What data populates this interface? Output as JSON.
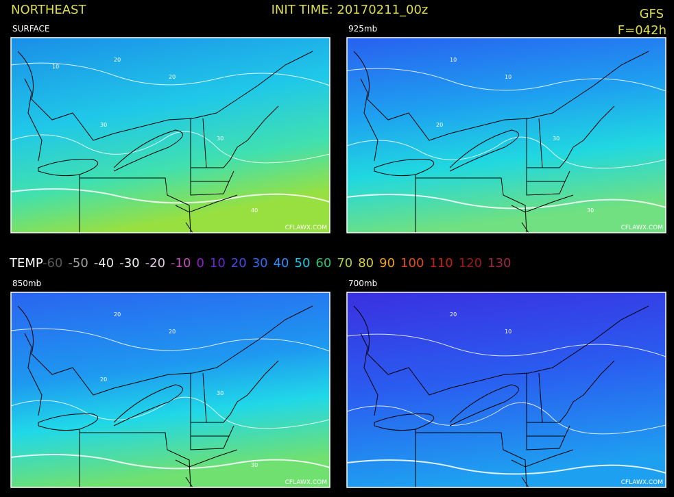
{
  "header": {
    "region": "NORTHEAST",
    "init_time": "INIT TIME: 20170211_00z",
    "model": "GFS",
    "forecast_hour": "F=042h"
  },
  "legend": {
    "title": "TEMP",
    "items": [
      {
        "label": "-60",
        "color": "#5a5a5a"
      },
      {
        "label": "-50",
        "color": "#a0a0a0"
      },
      {
        "label": "-40",
        "color": "#e8e8e8"
      },
      {
        "label": "-30",
        "color": "#f0f0f0"
      },
      {
        "label": "-20",
        "color": "#e0c8e0"
      },
      {
        "label": "-10",
        "color": "#c050c0"
      },
      {
        "label": "0",
        "color": "#9020c8"
      },
      {
        "label": "10",
        "color": "#6a28d0"
      },
      {
        "label": "20",
        "color": "#4848e8"
      },
      {
        "label": "30",
        "color": "#2c6cf8"
      },
      {
        "label": "40",
        "color": "#2890ff"
      },
      {
        "label": "50",
        "color": "#18c8e8"
      },
      {
        "label": "60",
        "color": "#30c070"
      },
      {
        "label": "70",
        "color": "#a8d040"
      },
      {
        "label": "80",
        "color": "#d8d040"
      },
      {
        "label": "90",
        "color": "#f0a010"
      },
      {
        "label": "100",
        "color": "#e05010"
      },
      {
        "label": "110",
        "color": "#c82010"
      },
      {
        "label": "120",
        "color": "#a01818"
      },
      {
        "label": "130",
        "color": "#a02848"
      }
    ]
  },
  "panels": [
    {
      "label": "SURFACE",
      "credit": "CFLAWX.COM",
      "contour_labels": [
        "20",
        "20",
        "30",
        "30",
        "40",
        "10"
      ]
    },
    {
      "label": "925mb",
      "credit": "CFLAWX.COM",
      "contour_labels": [
        "10",
        "10",
        "20",
        "30",
        "30"
      ]
    },
    {
      "label": "850mb",
      "credit": "CFLAWX.COM",
      "contour_labels": [
        "20",
        "20",
        "20",
        "30",
        "30"
      ]
    },
    {
      "label": "700mb",
      "credit": "CFLAWX.COM",
      "contour_labels": [
        "20",
        "10"
      ]
    }
  ]
}
